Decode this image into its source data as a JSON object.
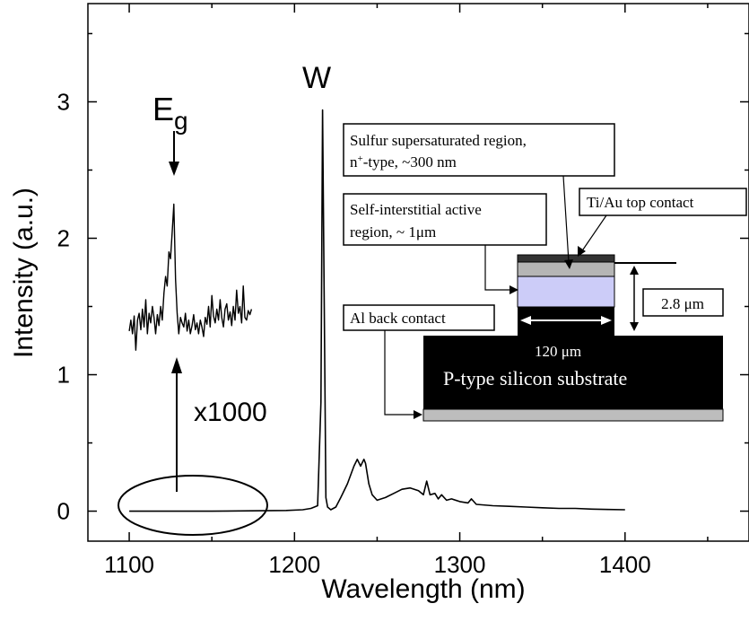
{
  "chart_data": {
    "type": "line",
    "xlabel": "Wavelength (nm)",
    "ylabel": "Intensity (a.u.)",
    "xlim": [
      1075,
      1475
    ],
    "ylim": [
      -0.22,
      3.72
    ],
    "x_ticks": [
      1100,
      1200,
      1300,
      1400
    ],
    "y_ticks": [
      0,
      1,
      2,
      3
    ],
    "grid": false,
    "series": [
      {
        "name": "",
        "x": [
          1100,
          1150,
          1195,
          1205,
          1210,
          1214,
          1216,
          1217,
          1218,
          1219,
          1220,
          1222,
          1225,
          1228,
          1232,
          1236,
          1238,
          1240,
          1242,
          1243,
          1245,
          1247,
          1250,
          1255,
          1260,
          1265,
          1270,
          1275,
          1278,
          1280,
          1282,
          1285,
          1287,
          1289,
          1292,
          1295,
          1300,
          1305,
          1307,
          1310,
          1320,
          1330,
          1340,
          1350,
          1360,
          1370,
          1380,
          1390,
          1400
        ],
        "values": [
          0,
          0,
          0.005,
          0.01,
          0.02,
          0.04,
          0.8,
          2.94,
          1.5,
          0.1,
          0.03,
          0.01,
          0.03,
          0.1,
          0.2,
          0.33,
          0.38,
          0.33,
          0.38,
          0.35,
          0.2,
          0.12,
          0.08,
          0.1,
          0.13,
          0.16,
          0.17,
          0.15,
          0.12,
          0.22,
          0.12,
          0.13,
          0.09,
          0.12,
          0.08,
          0.09,
          0.07,
          0.06,
          0.09,
          0.05,
          0.04,
          0.035,
          0.03,
          0.025,
          0.02,
          0.02,
          0.015,
          0.012,
          0.01
        ]
      },
      {
        "name": "x1000",
        "x": [
          1100,
          1101,
          1102,
          1103,
          1104,
          1105,
          1106,
          1107,
          1108,
          1109,
          1110,
          1111,
          1112,
          1113,
          1114,
          1115,
          1116,
          1117,
          1118,
          1119,
          1120,
          1121,
          1122,
          1123,
          1124,
          1125,
          1126,
          1127,
          1128,
          1129,
          1130,
          1131,
          1132,
          1133,
          1134,
          1135,
          1136,
          1137,
          1138,
          1139,
          1140,
          1141,
          1142,
          1143,
          1144,
          1145,
          1146,
          1147,
          1148,
          1149,
          1150,
          1151,
          1152,
          1153,
          1154,
          1155,
          1156,
          1157,
          1158,
          1159,
          1160,
          1161,
          1162,
          1163,
          1164,
          1165,
          1166,
          1167,
          1168,
          1169,
          1170,
          1171,
          1172,
          1173,
          1174
        ],
        "values": [
          1.32,
          1.4,
          1.3,
          1.43,
          1.18,
          1.4,
          1.45,
          1.33,
          1.48,
          1.35,
          1.55,
          1.3,
          1.45,
          1.38,
          1.5,
          1.42,
          1.3,
          1.44,
          1.36,
          1.5,
          1.4,
          1.6,
          1.72,
          1.65,
          1.9,
          1.85,
          2.05,
          2.25,
          1.7,
          1.45,
          1.3,
          1.42,
          1.38,
          1.35,
          1.45,
          1.32,
          1.4,
          1.3,
          1.36,
          1.44,
          1.33,
          1.38,
          1.3,
          1.4,
          1.35,
          1.28,
          1.42,
          1.37,
          1.5,
          1.35,
          1.58,
          1.43,
          1.38,
          1.48,
          1.4,
          1.55,
          1.42,
          1.35,
          1.48,
          1.52,
          1.4,
          1.46,
          1.36,
          1.5,
          1.4,
          1.62,
          1.45,
          1.5,
          1.38,
          1.65,
          1.42,
          1.4,
          1.47,
          1.44,
          1.48
        ]
      }
    ],
    "annotations": {
      "eg_main": "E",
      "eg_sub": "g",
      "w_peak": "W",
      "magnification": "x1000"
    },
    "inset": {
      "sulfur_line1": "Sulfur supersaturated region,",
      "sulfur_line2_pre": "n",
      "sulfur_line2_sup": "+",
      "sulfur_line2_post": "-type, ~300 nm",
      "self_line1": "Self-interstitial active",
      "self_line2": "region, ~ 1μm",
      "tiau": "Ti/Au top contact",
      "al": "Al back contact",
      "thickness": "2.8 μm",
      "width": "120 μm",
      "substrate": "P-type silicon substrate"
    }
  }
}
